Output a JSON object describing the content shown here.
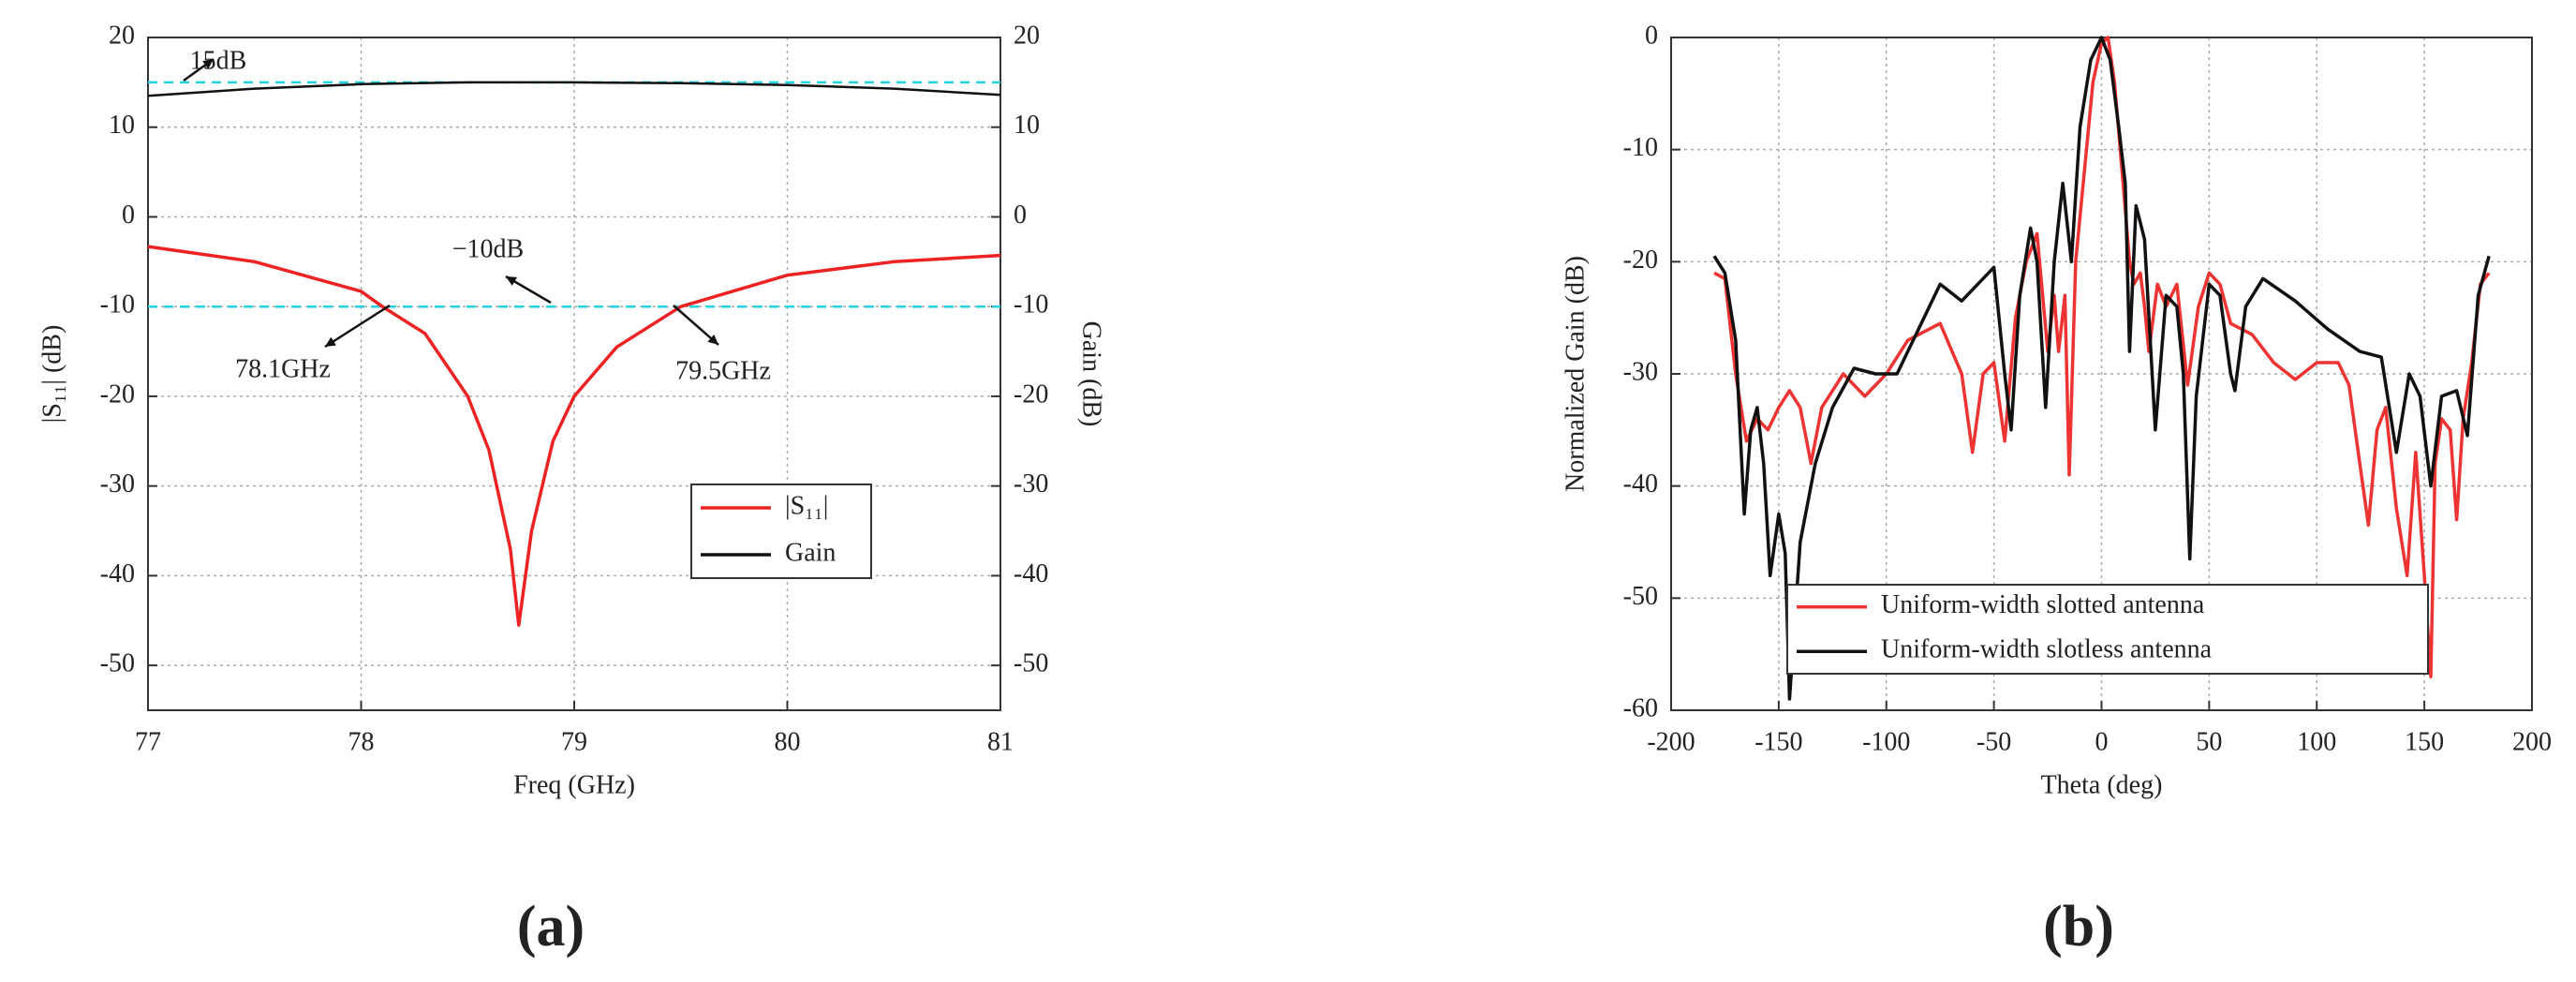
{
  "chart_data": [
    {
      "type": "line",
      "caption": "(a)",
      "xlabel": "Freq (GHz)",
      "ylabel": "|S₁₁| (dB)",
      "y2label": "Gain (dB)",
      "xlim": [
        77,
        81
      ],
      "xticks": [
        77,
        78,
        79,
        80,
        81
      ],
      "ylim": [
        -55,
        20
      ],
      "yticks": [
        20,
        10,
        0,
        -10,
        -20,
        -30,
        -40,
        -50
      ],
      "y2lim": [
        -55,
        20
      ],
      "y2ticks": [
        20,
        10,
        0,
        -10,
        -20,
        -30,
        -40,
        -50
      ],
      "grid": true,
      "legend": "lower right",
      "reference_lines": [
        15,
        -10
      ],
      "reference_color": "#22d3e0",
      "annotations": [
        "15dB",
        "−10dB",
        "78.1GHz",
        "79.5GHz"
      ],
      "series": [
        {
          "name": "|S₁₁|",
          "color": "#ee2222",
          "x": [
            77,
            77.5,
            78,
            78.1,
            78.3,
            78.5,
            78.6,
            78.7,
            78.74,
            78.8,
            78.9,
            79,
            79.2,
            79.5,
            80,
            80.5,
            81
          ],
          "values": [
            -3.3,
            -5,
            -8.3,
            -10,
            -13,
            -20,
            -26,
            -37,
            -45.5,
            -35,
            -25,
            -20,
            -14.5,
            -10,
            -6.5,
            -5,
            -4.3
          ]
        },
        {
          "name": "Gain",
          "color": "#111111",
          "axis": "y2",
          "x": [
            77,
            77.5,
            78,
            78.5,
            79,
            79.5,
            80,
            80.5,
            81
          ],
          "values": [
            13.5,
            14.3,
            14.8,
            15,
            15,
            14.9,
            14.7,
            14.3,
            13.6
          ]
        }
      ]
    },
    {
      "type": "line",
      "caption": "(b)",
      "xlabel": "Theta (deg)",
      "ylabel": "Normalized Gain (dB)",
      "xlim": [
        -200,
        200
      ],
      "xticks": [
        -200,
        -150,
        -100,
        -50,
        0,
        50,
        100,
        150,
        200
      ],
      "ylim": [
        -60,
        0
      ],
      "yticks": [
        0,
        -10,
        -20,
        -30,
        -40,
        -50,
        -60
      ],
      "grid": true,
      "legend": "lower left",
      "series": [
        {
          "name": "Uniform-width slotted antenna",
          "color": "#ee3333",
          "x": [
            -180,
            -175,
            -170,
            -165,
            -160,
            -155,
            -150,
            -145,
            -140,
            -135,
            -130,
            -120,
            -110,
            -100,
            -90,
            -75,
            -65,
            -60,
            -55,
            -50,
            -45,
            -40,
            -35,
            -30,
            -25,
            -22,
            -20,
            -17,
            -15,
            -12,
            -8,
            -4,
            0,
            3,
            6,
            10,
            13,
            15,
            18,
            20,
            22,
            26,
            30,
            35,
            40,
            45,
            50,
            55,
            60,
            70,
            80,
            90,
            100,
            110,
            115,
            120,
            124,
            128,
            132,
            137,
            142,
            146,
            150,
            153,
            155,
            158,
            162,
            165,
            168,
            172,
            176,
            180
          ],
          "values": [
            -21,
            -21.5,
            -30,
            -36,
            -34,
            -35,
            -33,
            -31.5,
            -33,
            -38,
            -33,
            -30,
            -32,
            -30,
            -27,
            -25.5,
            -30,
            -37,
            -30,
            -29,
            -36,
            -25,
            -20,
            -17.5,
            -28,
            -23,
            -28,
            -23,
            -39,
            -20,
            -12,
            -4,
            -0.5,
            0,
            -4,
            -13,
            -20,
            -22,
            -21,
            -24,
            -28,
            -22,
            -24,
            -22,
            -31,
            -24,
            -21,
            -22,
            -25.5,
            -26.5,
            -29,
            -30.5,
            -29,
            -29,
            -31,
            -38,
            -43.5,
            -35,
            -33,
            -42,
            -48,
            -37,
            -48,
            -57,
            -38,
            -34,
            -35,
            -43,
            -34,
            -29,
            -22,
            -21
          ]
        },
        {
          "name": "Uniform-width slotless antenna",
          "color": "#111111",
          "x": [
            -180,
            -175,
            -170,
            -166,
            -163,
            -160,
            -157,
            -154,
            -150,
            -147,
            -145,
            -140,
            -133,
            -125,
            -115,
            -105,
            -95,
            -85,
            -75,
            -65,
            -55,
            -50,
            -45,
            -42,
            -38,
            -33,
            -30,
            -26,
            -22,
            -18,
            -14,
            -10,
            -5,
            0,
            4,
            8,
            11,
            13,
            16,
            20,
            25,
            30,
            35,
            38,
            41,
            44,
            50,
            55,
            60,
            62,
            67,
            75,
            90,
            105,
            120,
            130,
            137,
            143,
            148,
            153,
            158,
            165,
            170,
            175,
            180
          ],
          "values": [
            -19.5,
            -21,
            -27,
            -42.5,
            -35,
            -33,
            -38,
            -48,
            -42.5,
            -46,
            -59,
            -45,
            -38,
            -33,
            -29.5,
            -30,
            -30,
            -26,
            -22,
            -23.5,
            -21.5,
            -20.5,
            -30,
            -35,
            -23,
            -17,
            -20,
            -33,
            -20,
            -13,
            -20,
            -8,
            -2,
            0,
            -2,
            -8,
            -13,
            -28,
            -15,
            -18,
            -35,
            -23,
            -24,
            -30,
            -46.5,
            -32,
            -22,
            -23,
            -30,
            -31.5,
            -24,
            -21.5,
            -23.5,
            -26,
            -28,
            -28.5,
            -37,
            -30,
            -32,
            -40,
            -32,
            -31.5,
            -35.5,
            -23,
            -19.5
          ]
        }
      ]
    }
  ]
}
